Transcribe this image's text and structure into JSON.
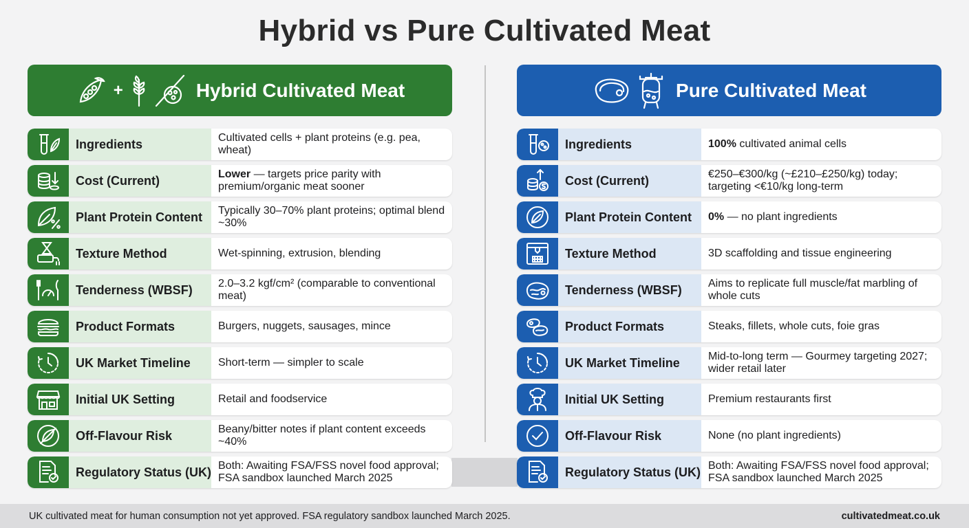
{
  "title": "Hybrid vs Pure Cultivated Meat",
  "colors": {
    "hybrid": "#2e7d32",
    "pure": "#1c5eb0",
    "hybrid_label_bg": "#dfeedf",
    "pure_label_bg": "#dce7f4"
  },
  "hybrid": {
    "title": "Hybrid Cultivated Meat",
    "header_icons": [
      "pea-pod-icon",
      "wheat-icon",
      "cell-icon"
    ],
    "plus": "+",
    "rows": [
      {
        "icon": "test-tube-leaf-icon",
        "label": "Ingredients",
        "value": "Cultivated cells + plant proteins (e.g. pea, wheat)",
        "strong": ""
      },
      {
        "icon": "coins-down-icon",
        "label": "Cost (Current)",
        "strong": "Lower",
        "value": " — targets price parity with premium/organic meat sooner"
      },
      {
        "icon": "leaf-percent-icon",
        "label": "Plant Protein Content",
        "value": "Typically 30–70% plant proteins; optimal blend ~30%",
        "strong": ""
      },
      {
        "icon": "extruder-icon",
        "label": "Texture Method",
        "value": "Wet-spinning, extrusion, blending",
        "strong": ""
      },
      {
        "icon": "gauge-cutlery-icon",
        "label": "Tenderness (WBSF)",
        "value": "2.0–3.2 kgf/cm² (comparable to conventional meat)",
        "strong": ""
      },
      {
        "icon": "burger-icon",
        "label": "Product Formats",
        "value": "Burgers, nuggets, sausages, mince",
        "strong": ""
      },
      {
        "icon": "clock-icon",
        "label": "UK Market Timeline",
        "value": "Short-term — simpler to scale",
        "strong": ""
      },
      {
        "icon": "store-icon",
        "label": "Initial UK Setting",
        "value": "Retail and foodservice",
        "strong": ""
      },
      {
        "icon": "no-leaf-icon",
        "label": "Off-Flavour Risk",
        "value": "Beany/bitter notes if plant content exceeds ~40%",
        "strong": ""
      },
      {
        "icon": "document-badge-icon",
        "label": "Regulatory Status (UK)",
        "value": "Both: Awaiting FSA/FSS novel food approval; FSA sandbox launched March 2025",
        "strong": ""
      }
    ]
  },
  "pure": {
    "title": "Pure Cultivated Meat",
    "header_icons": [
      "steak-icon",
      "bioreactor-icon"
    ],
    "rows": [
      {
        "icon": "test-tube-cell-icon",
        "label": "Ingredients",
        "strong": "100%",
        "value": " cultivated animal cells"
      },
      {
        "icon": "coins-up-icon",
        "label": "Cost (Current)",
        "value": "€250–€300/kg (~£210–£250/kg) today; targeting <€10/kg long-term",
        "strong": ""
      },
      {
        "icon": "leaf-icon",
        "label": "Plant Protein Content",
        "strong": "0%",
        "value": " — no plant ingredients"
      },
      {
        "icon": "scaffold-printer-icon",
        "label": "Texture Method",
        "value": "3D scaffolding and tissue engineering",
        "strong": ""
      },
      {
        "icon": "marbled-steak-icon",
        "label": "Tenderness (WBSF)",
        "value": "Aims to replicate full muscle/fat marbling of whole cuts",
        "strong": ""
      },
      {
        "icon": "steaks-icon",
        "label": "Product Formats",
        "value": "Steaks, fillets, whole cuts, foie gras",
        "strong": ""
      },
      {
        "icon": "clock-icon",
        "label": "UK Market Timeline",
        "value": "Mid-to-long term — Gourmey targeting 2027; wider retail later",
        "strong": ""
      },
      {
        "icon": "chef-icon",
        "label": "Initial UK Setting",
        "value": "Premium restaurants first",
        "strong": ""
      },
      {
        "icon": "check-circle-icon",
        "label": "Off-Flavour Risk",
        "value": "None (no plant ingredients)",
        "strong": ""
      },
      {
        "icon": "document-badge-icon",
        "label": "Regulatory Status (UK)",
        "value": "Both: Awaiting FSA/FSS novel food approval; FSA sandbox launched March 2025",
        "strong": ""
      }
    ]
  },
  "footer": {
    "note": "UK cultivated meat for human consumption not yet approved. FSA regulatory sandbox launched March 2025.",
    "site": "cultivatedmeat.co.uk"
  }
}
